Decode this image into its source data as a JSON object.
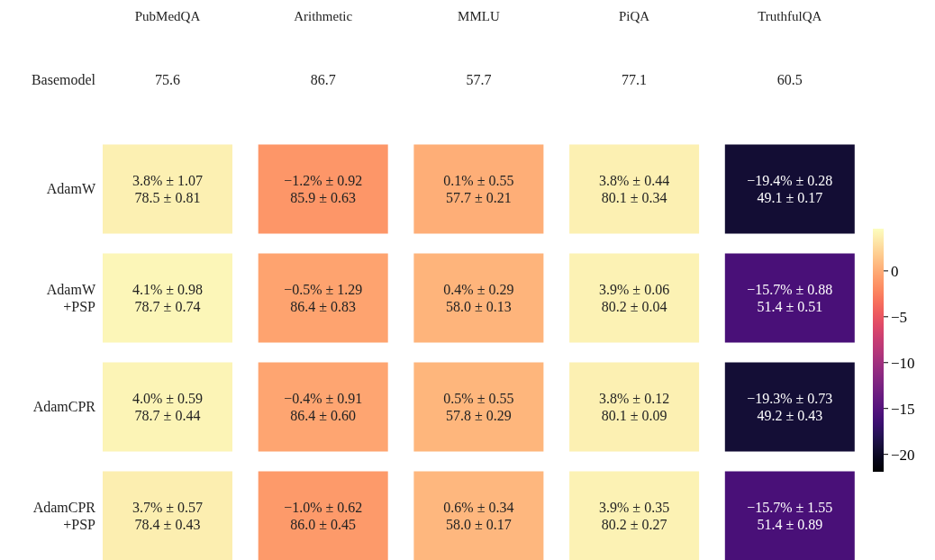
{
  "chart_data": {
    "type": "heatmap",
    "categories": [
      "PubMedQA",
      "Arithmetic",
      "MMLU",
      "PiQA",
      "TruthfulQA"
    ],
    "y_categories": [
      "Basemodel",
      "AdamW",
      "AdamW\n+PSP",
      "AdamCPR",
      "AdamCPR\n+PSP"
    ],
    "cells": [
      [
        null,
        null,
        null,
        null,
        null
      ],
      [
        3.8,
        -1.2,
        0.1,
        3.8,
        -19.4
      ],
      [
        4.1,
        -0.5,
        0.4,
        3.9,
        -15.7
      ],
      [
        4.0,
        -0.4,
        0.5,
        3.8,
        -19.3
      ],
      [
        3.7,
        -1.0,
        0.6,
        3.9,
        -15.7
      ]
    ],
    "cell_labels": [
      [
        "75.6",
        "86.7",
        "57.7",
        "77.1",
        "60.5"
      ],
      [
        "3.8% ± 1.07\n78.5 ± 0.81",
        "−1.2% ± 0.92\n85.9 ± 0.63",
        "0.1% ± 0.55\n57.7 ± 0.21",
        "3.8% ± 0.44\n80.1 ± 0.34",
        "−19.4% ± 0.28\n49.1 ± 0.17"
      ],
      [
        "4.1% ± 0.98\n78.7 ± 0.74",
        "−0.5% ± 1.29\n86.4 ± 0.83",
        "0.4% ± 0.29\n58.0 ± 0.13",
        "3.9% ± 0.06\n80.2 ± 0.04",
        "−15.7% ± 0.88\n51.4 ± 0.51"
      ],
      [
        "4.0% ± 0.59\n78.7 ± 0.44",
        "−0.4% ± 0.91\n86.4 ± 0.60",
        "0.5% ± 0.55\n57.8 ± 0.29",
        "3.8% ± 0.12\n80.1 ± 0.09",
        "−19.3% ± 0.73\n49.2 ± 0.43"
      ],
      [
        "3.7% ± 0.57\n78.4 ± 0.43",
        "−1.0% ± 0.62\n86.0 ± 0.45",
        "0.6% ± 0.34\n58.0 ± 0.17",
        "3.9% ± 0.35\n80.2 ± 0.27",
        "−15.7% ± 1.55\n51.4 ± 0.89"
      ]
    ],
    "clim": [
      -21.9,
      4.6
    ],
    "cticks": [
      {
        "value": 0,
        "label": "0"
      },
      {
        "value": -5,
        "label": "−5"
      },
      {
        "value": -10,
        "label": "−10"
      },
      {
        "value": -15,
        "label": "−15"
      },
      {
        "value": -20,
        "label": "−20"
      }
    ]
  }
}
